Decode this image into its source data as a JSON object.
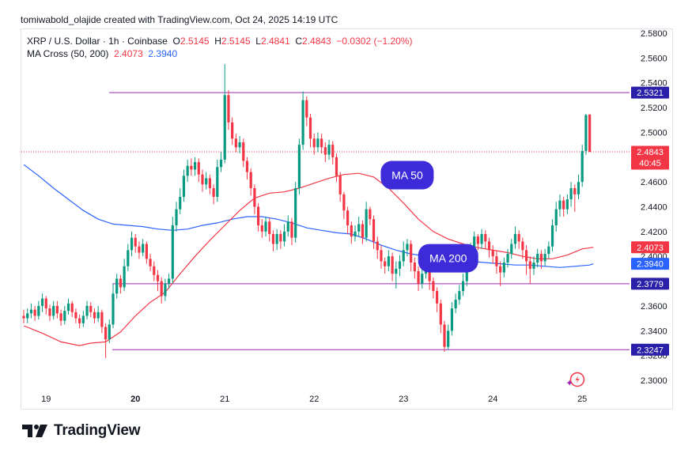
{
  "header": {
    "attribution": "tomiwabold_olajide created with TradingView.com, Oct 24, 2025 14:19 UTC"
  },
  "legend": {
    "symbol": "XRP / U.S. Dollar · 1h · Coinbase",
    "o_label": "O",
    "o_value": "2.5145",
    "h_label": "H",
    "h_value": "2.5145",
    "l_label": "L",
    "l_value": "2.4841",
    "c_label": "C",
    "c_value": "2.4843",
    "change": "−0.0302 (−1.20%)",
    "ma_name": "MA Cross (50, 200)",
    "ma50_value": "2.4073",
    "ma200_value": "2.3940"
  },
  "footer": {
    "brand": "TradingView"
  },
  "colors": {
    "up": "#089981",
    "down": "#f23645",
    "ma50": "#f23645",
    "ma200": "#2962ff",
    "hline": "#9c27b0",
    "label_bg": "#3d2bd9",
    "price_bg": "#f23645"
  },
  "chart_data": {
    "type": "candlestick",
    "y_ticks": [
      "2.5800",
      "2.5600",
      "2.5400",
      "2.5200",
      "2.5000",
      "2.4800",
      "2.4600",
      "2.4400",
      "2.4200",
      "2.4000",
      "2.3800",
      "2.3600",
      "2.3400",
      "2.3200",
      "2.3000"
    ],
    "ylim": [
      2.296,
      2.5855
    ],
    "x_ticks": [
      {
        "label": "19",
        "bar": 6
      },
      {
        "label": "20",
        "bar": 30
      },
      {
        "label": "21",
        "bar": 54
      },
      {
        "label": "22",
        "bar": 78
      },
      {
        "label": "23",
        "bar": 102
      },
      {
        "label": "24",
        "bar": 126
      },
      {
        "label": "25",
        "bar": 150
      }
    ],
    "bar_count": 166,
    "horizontal_lines": [
      {
        "value": 2.5321,
        "label": "2.5321"
      },
      {
        "value": 2.3779,
        "label": "2.3779"
      },
      {
        "value": 2.3247,
        "label": "2.3247"
      }
    ],
    "last_price": {
      "value": 2.4843,
      "label": "2.4843",
      "countdown": "40:45"
    },
    "ma_labels": [
      {
        "value": 2.4073,
        "label": "2.4073",
        "series": "MA 50"
      },
      {
        "value": 2.394,
        "label": "2.3940",
        "series": "MA 200"
      }
    ],
    "annotations": [
      {
        "text": "MA 50",
        "bar": 103,
        "value": 2.4655
      },
      {
        "text": "MA 200",
        "bar": 114,
        "value": 2.3985
      }
    ],
    "candles": [
      [
        0,
        2.352,
        2.35,
        2.357,
        2.346
      ],
      [
        1,
        2.35,
        2.354,
        2.358,
        2.346
      ],
      [
        2,
        2.354,
        2.357,
        2.362,
        2.35
      ],
      [
        3,
        2.357,
        2.352,
        2.36,
        2.348
      ],
      [
        4,
        2.352,
        2.36,
        2.364,
        2.349
      ],
      [
        5,
        2.36,
        2.366,
        2.37,
        2.355
      ],
      [
        6,
        2.366,
        2.358,
        2.368,
        2.353
      ],
      [
        7,
        2.358,
        2.352,
        2.361,
        2.348
      ],
      [
        8,
        2.352,
        2.36,
        2.364,
        2.349
      ],
      [
        9,
        2.36,
        2.354,
        2.364,
        2.35
      ],
      [
        10,
        2.354,
        2.348,
        2.357,
        2.344
      ],
      [
        11,
        2.348,
        2.356,
        2.36,
        2.345
      ],
      [
        12,
        2.356,
        2.362,
        2.366,
        2.353
      ],
      [
        13,
        2.362,
        2.355,
        2.364,
        2.351
      ],
      [
        14,
        2.355,
        2.35,
        2.358,
        2.346
      ],
      [
        15,
        2.35,
        2.346,
        2.353,
        2.342
      ],
      [
        16,
        2.346,
        2.352,
        2.356,
        2.343
      ],
      [
        17,
        2.352,
        2.36,
        2.364,
        2.349
      ],
      [
        18,
        2.36,
        2.355,
        2.363,
        2.351
      ],
      [
        19,
        2.355,
        2.35,
        2.358,
        2.346
      ],
      [
        20,
        2.35,
        2.355,
        2.36,
        2.347
      ],
      [
        21,
        2.355,
        2.343,
        2.357,
        2.338
      ],
      [
        22,
        2.343,
        2.333,
        2.346,
        2.318
      ],
      [
        23,
        2.333,
        2.345,
        2.349,
        2.33
      ],
      [
        24,
        2.345,
        2.37,
        2.378,
        2.342
      ],
      [
        25,
        2.37,
        2.382,
        2.386,
        2.366
      ],
      [
        26,
        2.382,
        2.375,
        2.385,
        2.37
      ],
      [
        27,
        2.375,
        2.392,
        2.398,
        2.372
      ],
      [
        28,
        2.392,
        2.405,
        2.41,
        2.388
      ],
      [
        29,
        2.405,
        2.415,
        2.42,
        2.4
      ],
      [
        30,
        2.415,
        2.408,
        2.418,
        2.403
      ],
      [
        31,
        2.408,
        2.403,
        2.412,
        2.398
      ],
      [
        32,
        2.403,
        2.41,
        2.414,
        2.4
      ],
      [
        33,
        2.41,
        2.398,
        2.412,
        2.394
      ],
      [
        34,
        2.398,
        2.392,
        2.402,
        2.388
      ],
      [
        35,
        2.392,
        2.385,
        2.396,
        2.38
      ],
      [
        36,
        2.385,
        2.38,
        2.389,
        2.372
      ],
      [
        37,
        2.38,
        2.368,
        2.383,
        2.362
      ],
      [
        38,
        2.368,
        2.378,
        2.382,
        2.364
      ],
      [
        39,
        2.378,
        2.382,
        2.386,
        2.374
      ],
      [
        40,
        2.382,
        2.425,
        2.432,
        2.378
      ],
      [
        41,
        2.425,
        2.438,
        2.444,
        2.42
      ],
      [
        42,
        2.438,
        2.448,
        2.455,
        2.434
      ],
      [
        43,
        2.448,
        2.465,
        2.47,
        2.444
      ],
      [
        44,
        2.465,
        2.473,
        2.478,
        2.46
      ],
      [
        45,
        2.473,
        2.47,
        2.479,
        2.465
      ],
      [
        46,
        2.47,
        2.476,
        2.48,
        2.465
      ],
      [
        47,
        2.476,
        2.466,
        2.479,
        2.46
      ],
      [
        48,
        2.466,
        2.458,
        2.47,
        2.452
      ],
      [
        49,
        2.458,
        2.463,
        2.468,
        2.454
      ],
      [
        50,
        2.463,
        2.455,
        2.466,
        2.45
      ],
      [
        51,
        2.455,
        2.448,
        2.458,
        2.442
      ],
      [
        52,
        2.448,
        2.472,
        2.478,
        2.444
      ],
      [
        53,
        2.472,
        2.478,
        2.484,
        2.468
      ],
      [
        54,
        2.478,
        2.53,
        2.555,
        2.475
      ],
      [
        55,
        2.53,
        2.508,
        2.534,
        2.502
      ],
      [
        56,
        2.508,
        2.495,
        2.512,
        2.49
      ],
      [
        57,
        2.495,
        2.488,
        2.499,
        2.484
      ],
      [
        58,
        2.488,
        2.492,
        2.497,
        2.483
      ],
      [
        59,
        2.492,
        2.477,
        2.495,
        2.472
      ],
      [
        60,
        2.477,
        2.468,
        2.48,
        2.462
      ],
      [
        61,
        2.468,
        2.455,
        2.471,
        2.449
      ],
      [
        62,
        2.455,
        2.44,
        2.458,
        2.434
      ],
      [
        63,
        2.44,
        2.425,
        2.443,
        2.42
      ],
      [
        64,
        2.425,
        2.42,
        2.43,
        2.415
      ],
      [
        65,
        2.42,
        2.428,
        2.432,
        2.416
      ],
      [
        66,
        2.428,
        2.418,
        2.431,
        2.412
      ],
      [
        67,
        2.418,
        2.41,
        2.421,
        2.404
      ],
      [
        68,
        2.41,
        2.418,
        2.422,
        2.405
      ],
      [
        69,
        2.418,
        2.412,
        2.421,
        2.406
      ],
      [
        70,
        2.412,
        2.42,
        2.426,
        2.408
      ],
      [
        71,
        2.42,
        2.428,
        2.433,
        2.416
      ],
      [
        72,
        2.428,
        2.415,
        2.431,
        2.409
      ],
      [
        73,
        2.415,
        2.455,
        2.46,
        2.411
      ],
      [
        74,
        2.455,
        2.49,
        2.495,
        2.45
      ],
      [
        75,
        2.49,
        2.526,
        2.533,
        2.486
      ],
      [
        76,
        2.526,
        2.512,
        2.529,
        2.505
      ],
      [
        77,
        2.512,
        2.495,
        2.515,
        2.488
      ],
      [
        78,
        2.495,
        2.488,
        2.499,
        2.482
      ],
      [
        79,
        2.488,
        2.495,
        2.5,
        2.484
      ],
      [
        80,
        2.495,
        2.488,
        2.499,
        2.483
      ],
      [
        81,
        2.488,
        2.482,
        2.492,
        2.476
      ],
      [
        82,
        2.482,
        2.49,
        2.494,
        2.478
      ],
      [
        83,
        2.49,
        2.48,
        2.493,
        2.474
      ],
      [
        84,
        2.48,
        2.465,
        2.483,
        2.46
      ],
      [
        85,
        2.465,
        2.45,
        2.468,
        2.444
      ],
      [
        86,
        2.45,
        2.437,
        2.452,
        2.43
      ],
      [
        87,
        2.437,
        2.425,
        2.44,
        2.418
      ],
      [
        88,
        2.425,
        2.416,
        2.428,
        2.41
      ],
      [
        89,
        2.416,
        2.42,
        2.425,
        2.412
      ],
      [
        90,
        2.42,
        2.426,
        2.432,
        2.416
      ],
      [
        91,
        2.426,
        2.415,
        2.429,
        2.41
      ],
      [
        92,
        2.415,
        2.438,
        2.444,
        2.412
      ],
      [
        93,
        2.438,
        2.43,
        2.44,
        2.425
      ],
      [
        94,
        2.43,
        2.412,
        2.433,
        2.406
      ],
      [
        95,
        2.412,
        2.405,
        2.416,
        2.398
      ],
      [
        96,
        2.405,
        2.396,
        2.409,
        2.39
      ],
      [
        97,
        2.396,
        2.392,
        2.399,
        2.386
      ],
      [
        98,
        2.392,
        2.4,
        2.405,
        2.388
      ],
      [
        99,
        2.4,
        2.386,
        2.403,
        2.38
      ],
      [
        100,
        2.386,
        2.39,
        2.396,
        2.374
      ],
      [
        101,
        2.39,
        2.396,
        2.401,
        2.384
      ],
      [
        102,
        2.396,
        2.405,
        2.412,
        2.392
      ],
      [
        103,
        2.405,
        2.41,
        2.414,
        2.4
      ],
      [
        104,
        2.41,
        2.395,
        2.413,
        2.388
      ],
      [
        105,
        2.395,
        2.388,
        2.399,
        2.382
      ],
      [
        106,
        2.388,
        2.378,
        2.392,
        2.372
      ],
      [
        107,
        2.378,
        2.386,
        2.391,
        2.374
      ],
      [
        108,
        2.386,
        2.392,
        2.396,
        2.382
      ],
      [
        109,
        2.392,
        2.38,
        2.395,
        2.373
      ],
      [
        110,
        2.38,
        2.372,
        2.383,
        2.366
      ],
      [
        111,
        2.372,
        2.362,
        2.375,
        2.355
      ],
      [
        112,
        2.362,
        2.345,
        2.365,
        2.338
      ],
      [
        113,
        2.345,
        2.327,
        2.348,
        2.323
      ],
      [
        114,
        2.327,
        2.34,
        2.345,
        2.325
      ],
      [
        115,
        2.34,
        2.358,
        2.363,
        2.336
      ],
      [
        116,
        2.358,
        2.365,
        2.37,
        2.354
      ],
      [
        117,
        2.365,
        2.372,
        2.377,
        2.361
      ],
      [
        118,
        2.372,
        2.38,
        2.386,
        2.368
      ],
      [
        119,
        2.38,
        2.392,
        2.398,
        2.376
      ],
      [
        120,
        2.392,
        2.405,
        2.411,
        2.388
      ],
      [
        121,
        2.405,
        2.416,
        2.42,
        2.4
      ],
      [
        122,
        2.416,
        2.41,
        2.418,
        2.405
      ],
      [
        123,
        2.41,
        2.418,
        2.422,
        2.406
      ],
      [
        124,
        2.418,
        2.412,
        2.421,
        2.406
      ],
      [
        125,
        2.412,
        2.405,
        2.415,
        2.399
      ],
      [
        126,
        2.405,
        2.4,
        2.409,
        2.394
      ],
      [
        127,
        2.4,
        2.392,
        2.404,
        2.386
      ],
      [
        128,
        2.392,
        2.387,
        2.396,
        2.376
      ],
      [
        129,
        2.387,
        2.395,
        2.399,
        2.383
      ],
      [
        130,
        2.395,
        2.402,
        2.406,
        2.391
      ],
      [
        131,
        2.402,
        2.41,
        2.414,
        2.398
      ],
      [
        132,
        2.41,
        2.418,
        2.424,
        2.406
      ],
      [
        133,
        2.418,
        2.412,
        2.421,
        2.406
      ],
      [
        134,
        2.412,
        2.405,
        2.415,
        2.398
      ],
      [
        135,
        2.405,
        2.396,
        2.409,
        2.385
      ],
      [
        136,
        2.396,
        2.39,
        2.4,
        2.378
      ],
      [
        137,
        2.39,
        2.395,
        2.4,
        2.385
      ],
      [
        138,
        2.395,
        2.402,
        2.406,
        2.391
      ],
      [
        139,
        2.402,
        2.396,
        2.405,
        2.39
      ],
      [
        140,
        2.396,
        2.402,
        2.406,
        2.392
      ],
      [
        141,
        2.402,
        2.408,
        2.412,
        2.398
      ],
      [
        142,
        2.408,
        2.425,
        2.43,
        2.404
      ],
      [
        143,
        2.425,
        2.438,
        2.444,
        2.42
      ],
      [
        144,
        2.438,
        2.445,
        2.45,
        2.432
      ],
      [
        145,
        2.445,
        2.438,
        2.448,
        2.432
      ],
      [
        146,
        2.438,
        2.446,
        2.45,
        2.434
      ],
      [
        147,
        2.446,
        2.455,
        2.46,
        2.44
      ],
      [
        148,
        2.455,
        2.45,
        2.458,
        2.436
      ],
      [
        149,
        2.45,
        2.46,
        2.466,
        2.446
      ],
      [
        150,
        2.46,
        2.485,
        2.49,
        2.456
      ],
      [
        151,
        2.485,
        2.514,
        2.515,
        2.482
      ],
      [
        152,
        2.5145,
        2.4843,
        2.5145,
        2.4841
      ]
    ],
    "ma50": [
      [
        0,
        2.344
      ],
      [
        5,
        2.338
      ],
      [
        10,
        2.331
      ],
      [
        15,
        2.328
      ],
      [
        18,
        2.33
      ],
      [
        22,
        2.331
      ],
      [
        26,
        2.339
      ],
      [
        30,
        2.352
      ],
      [
        34,
        2.363
      ],
      [
        38,
        2.371
      ],
      [
        42,
        2.386
      ],
      [
        46,
        2.4
      ],
      [
        50,
        2.413
      ],
      [
        54,
        2.425
      ],
      [
        58,
        2.437
      ],
      [
        62,
        2.447
      ],
      [
        66,
        2.451
      ],
      [
        70,
        2.452
      ],
      [
        74,
        2.455
      ],
      [
        78,
        2.459
      ],
      [
        82,
        2.463
      ],
      [
        86,
        2.466
      ],
      [
        90,
        2.467
      ],
      [
        94,
        2.464
      ],
      [
        98,
        2.455
      ],
      [
        102,
        2.443
      ],
      [
        106,
        2.43
      ],
      [
        110,
        2.42
      ],
      [
        114,
        2.414
      ],
      [
        118,
        2.41
      ],
      [
        122,
        2.407
      ],
      [
        126,
        2.405
      ],
      [
        130,
        2.403
      ],
      [
        134,
        2.4
      ],
      [
        138,
        2.398
      ],
      [
        142,
        2.398
      ],
      [
        146,
        2.401
      ],
      [
        150,
        2.406
      ],
      [
        153,
        2.4073
      ]
    ],
    "ma200": [
      [
        0,
        2.474
      ],
      [
        4,
        2.465
      ],
      [
        8,
        2.455
      ],
      [
        12,
        2.446
      ],
      [
        16,
        2.437
      ],
      [
        20,
        2.43
      ],
      [
        24,
        2.426
      ],
      [
        28,
        2.425
      ],
      [
        32,
        2.424
      ],
      [
        36,
        2.422
      ],
      [
        40,
        2.421
      ],
      [
        44,
        2.422
      ],
      [
        48,
        2.425
      ],
      [
        52,
        2.427
      ],
      [
        56,
        2.43
      ],
      [
        60,
        2.432
      ],
      [
        64,
        2.432
      ],
      [
        68,
        2.43
      ],
      [
        72,
        2.427
      ],
      [
        76,
        2.423
      ],
      [
        80,
        2.421
      ],
      [
        84,
        2.419
      ],
      [
        88,
        2.418
      ],
      [
        92,
        2.414
      ],
      [
        96,
        2.409
      ],
      [
        100,
        2.405
      ],
      [
        104,
        2.402
      ],
      [
        108,
        2.4
      ],
      [
        112,
        2.399
      ],
      [
        116,
        2.397
      ],
      [
        120,
        2.396
      ],
      [
        124,
        2.395
      ],
      [
        128,
        2.394
      ],
      [
        132,
        2.393
      ],
      [
        136,
        2.393
      ],
      [
        140,
        2.392
      ],
      [
        144,
        2.391
      ],
      [
        148,
        2.392
      ],
      [
        152,
        2.393
      ],
      [
        153,
        2.394
      ]
    ]
  }
}
